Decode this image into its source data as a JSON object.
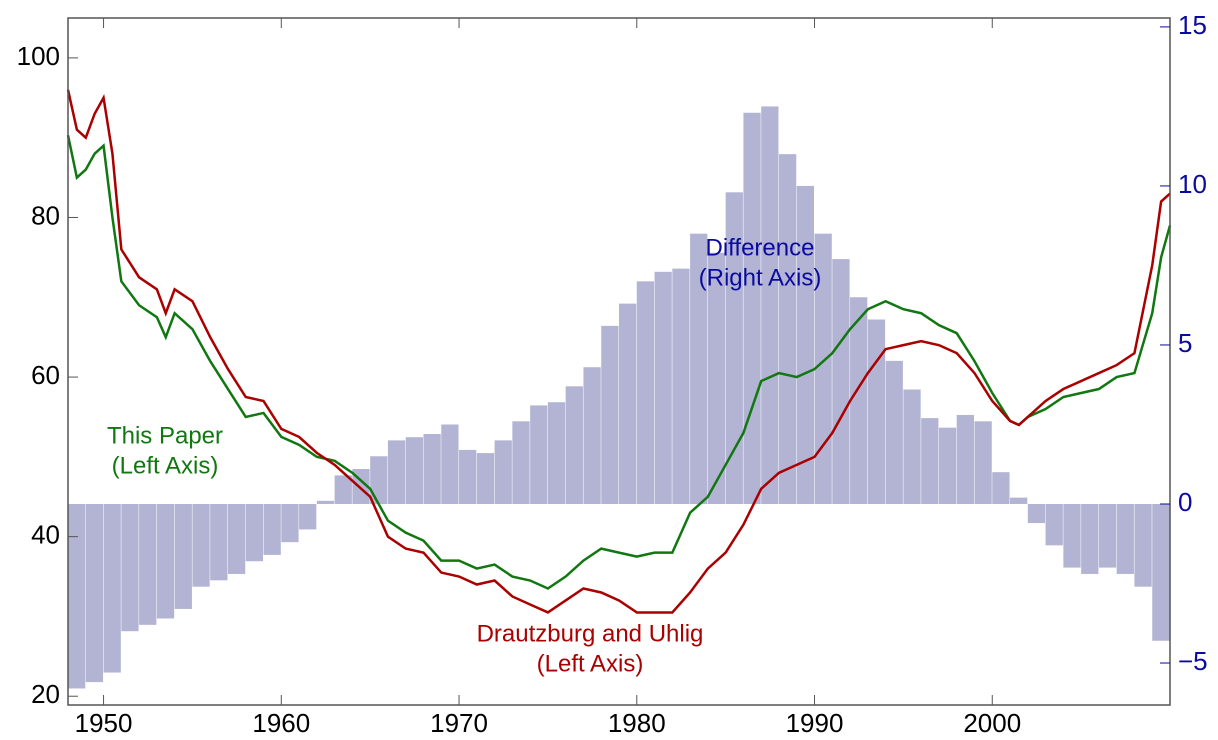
{
  "chart_data": {
    "type": "combo",
    "annotations": [
      {
        "text": [
          "This Paper",
          "(Left Axis)"
        ],
        "color": "#117711"
      },
      {
        "text": [
          "Drautzburg and Uhlig",
          "(Left Axis)"
        ],
        "color": "#aa0000"
      },
      {
        "text": [
          "Difference",
          "(Right Axis)"
        ],
        "color": "#0a0aa0"
      }
    ],
    "xlim": [
      1948,
      2010
    ],
    "xticks": [
      1950,
      1960,
      1970,
      1980,
      1990,
      2000
    ],
    "ylim": [
      18.9,
      105
    ],
    "yticks": [
      20,
      40,
      60,
      80,
      100
    ],
    "y2lim": [
      -6.32,
      15.28
    ],
    "y2ticks": [
      {
        "value": -5,
        "label": "−5"
      },
      0,
      5,
      10,
      15
    ],
    "y2color": "#0a0aa0",
    "series": [
      {
        "type": "bar",
        "axis": "y2",
        "color": "#b3b4d4",
        "x": [
          1948,
          1949,
          1950,
          1951,
          1952,
          1953,
          1954,
          1955,
          1956,
          1957,
          1958,
          1959,
          1960,
          1961,
          1962,
          1963,
          1964,
          1965,
          1966,
          1967,
          1968,
          1969,
          1970,
          1971,
          1972,
          1973,
          1974,
          1975,
          1976,
          1977,
          1978,
          1979,
          1980,
          1981,
          1982,
          1983,
          1984,
          1985,
          1986,
          1987,
          1988,
          1989,
          1990,
          1991,
          1992,
          1993,
          1994,
          1995,
          1996,
          1997,
          1998,
          1999,
          2000,
          2001,
          2002,
          2003,
          2004,
          2005,
          2006,
          2007,
          2008,
          2009
        ],
        "values": [
          -5.8,
          -5.6,
          -5.3,
          -4.0,
          -3.8,
          -3.6,
          -3.3,
          -2.6,
          -2.4,
          -2.2,
          -1.8,
          -1.6,
          -1.2,
          -0.8,
          0.1,
          0.9,
          1.1,
          1.5,
          2.0,
          2.1,
          2.2,
          2.5,
          1.7,
          1.6,
          2.0,
          2.6,
          3.1,
          3.2,
          3.7,
          4.3,
          5.6,
          6.3,
          7.0,
          7.3,
          7.4,
          8.5,
          7.9,
          9.8,
          12.3,
          12.5,
          11.0,
          10.0,
          8.5,
          7.7,
          6.5,
          5.8,
          4.5,
          3.6,
          2.7,
          2.4,
          2.8,
          2.6,
          1.0,
          0.2,
          -0.6,
          -1.3,
          -2.0,
          -2.2,
          -2.0,
          -2.2,
          -2.6,
          -4.3
        ]
      },
      {
        "type": "line",
        "color": "#117711",
        "x": [
          1948,
          1948.5,
          1949,
          1949.5,
          1950,
          1950.5,
          1951,
          1952,
          1953,
          1953.5,
          1954,
          1955,
          1956,
          1957,
          1958,
          1959,
          1960,
          1961,
          1962,
          1963,
          1964,
          1965,
          1966,
          1967,
          1968,
          1969,
          1970,
          1971,
          1972,
          1973,
          1974,
          1975,
          1976,
          1977,
          1978,
          1979,
          1980,
          1981,
          1982,
          1983,
          1984,
          1985,
          1986,
          1987,
          1988,
          1989,
          1990,
          1991,
          1992,
          1993,
          1994,
          1995,
          1996,
          1997,
          1998,
          1999,
          2000,
          2001,
          2001.5,
          2002,
          2003,
          2004,
          2005,
          2006,
          2007,
          2008,
          2009,
          2009.5,
          2010
        ],
        "values": [
          90.3,
          85,
          86,
          88,
          89,
          80,
          72,
          69,
          67.5,
          65,
          68,
          66,
          62,
          58.5,
          55,
          55.5,
          52.5,
          51.5,
          50,
          49.5,
          48,
          46,
          42,
          40.5,
          39.5,
          37,
          37,
          36,
          36.5,
          35,
          34.5,
          33.5,
          35,
          37,
          38.5,
          38,
          37.5,
          38,
          38,
          43,
          45,
          49,
          53,
          59.5,
          60.5,
          60,
          61,
          63,
          66,
          68.5,
          69.5,
          68.5,
          68,
          66.5,
          65.5,
          62,
          58,
          54.5,
          54,
          55,
          56,
          57.5,
          58,
          58.5,
          60,
          60.5,
          68,
          75,
          79
        ]
      },
      {
        "type": "line",
        "color": "#aa0000",
        "x": [
          1948,
          1948.5,
          1949,
          1949.5,
          1950,
          1950.5,
          1951,
          1952,
          1953,
          1953.5,
          1954,
          1955,
          1956,
          1957,
          1958,
          1959,
          1960,
          1961,
          1962,
          1963,
          1964,
          1965,
          1966,
          1967,
          1968,
          1969,
          1970,
          1971,
          1972,
          1973,
          1974,
          1975,
          1976,
          1977,
          1978,
          1979,
          1980,
          1981,
          1982,
          1983,
          1984,
          1985,
          1986,
          1987,
          1988,
          1989,
          1990,
          1991,
          1992,
          1993,
          1994,
          1995,
          1996,
          1997,
          1998,
          1999,
          2000,
          2001,
          2001.5,
          2002,
          2003,
          2004,
          2005,
          2006,
          2007,
          2008,
          2009,
          2009.5,
          2010
        ],
        "values": [
          96,
          91,
          90,
          93,
          95,
          88,
          76,
          72.5,
          71,
          68,
          71,
          69.5,
          65,
          61,
          57.5,
          57,
          53.5,
          52.5,
          50.5,
          49,
          47,
          45,
          40,
          38.5,
          38,
          35.5,
          35,
          34,
          34.5,
          32.5,
          31.5,
          30.5,
          32,
          33.5,
          33,
          32,
          30.5,
          30.5,
          30.5,
          33,
          36,
          38,
          41.5,
          46,
          48,
          49,
          50,
          53,
          57,
          60.5,
          63.5,
          64,
          64.5,
          64,
          63,
          60.5,
          57,
          54.5,
          54,
          55,
          57,
          58.5,
          59.5,
          60.5,
          61.5,
          63,
          74,
          82,
          83
        ]
      }
    ]
  }
}
